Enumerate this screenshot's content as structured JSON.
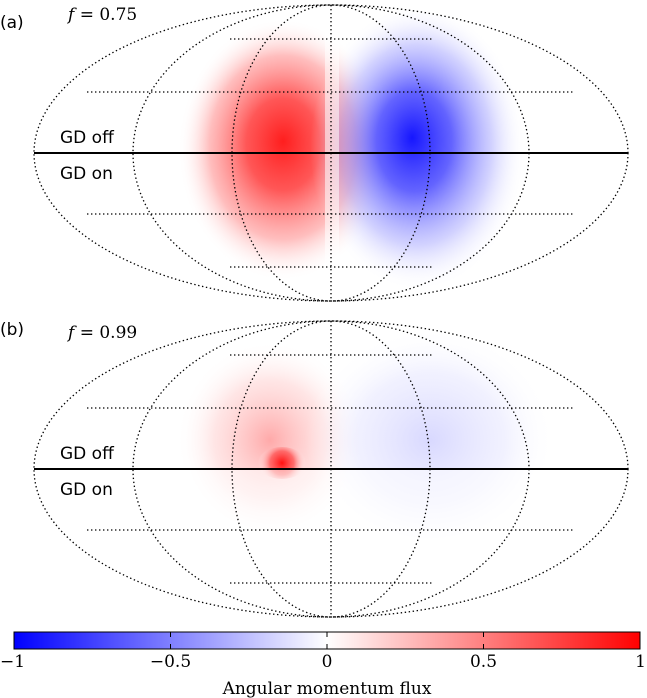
{
  "figure": {
    "panels": [
      {
        "tag": "(a)",
        "f_symbol": "f",
        "f_rest": " = 0.75",
        "upper_label": "GD off",
        "lower_label": "GD on"
      },
      {
        "tag": "(b)",
        "f_symbol": "f",
        "f_rest": " = 0.99",
        "upper_label": "GD off",
        "lower_label": "GD on"
      }
    ],
    "colorbar": {
      "title": "Angular momentum flux",
      "ticks": [
        "−1",
        "−0.5",
        "0",
        "0.5",
        "1"
      ],
      "range": [
        -1,
        1
      ],
      "colormap": "bwr",
      "low_color": "#0000ff",
      "mid_color": "#ffffff",
      "high_color": "#ff0000"
    }
  },
  "chart_data": {
    "type": "heatmap",
    "projection": "mollweide",
    "colorbar_label": "Angular momentum flux",
    "colorbar_range": [
      -1,
      1
    ],
    "colorbar_ticks": [
      -1,
      -0.5,
      0,
      0.5,
      1
    ],
    "panels": [
      {
        "label": "(a)",
        "f": 0.75,
        "halves": [
          "GD off",
          "GD on"
        ],
        "peak_positive": 1.0,
        "peak_negative": -1.0,
        "positive_side": "left",
        "negative_side": "right"
      },
      {
        "label": "(b)",
        "f": 0.99,
        "halves": [
          "GD off",
          "GD on"
        ],
        "peak_positive": 1.0,
        "peak_negative": -0.15,
        "positive_side": "left",
        "negative_side": "right"
      }
    ]
  }
}
